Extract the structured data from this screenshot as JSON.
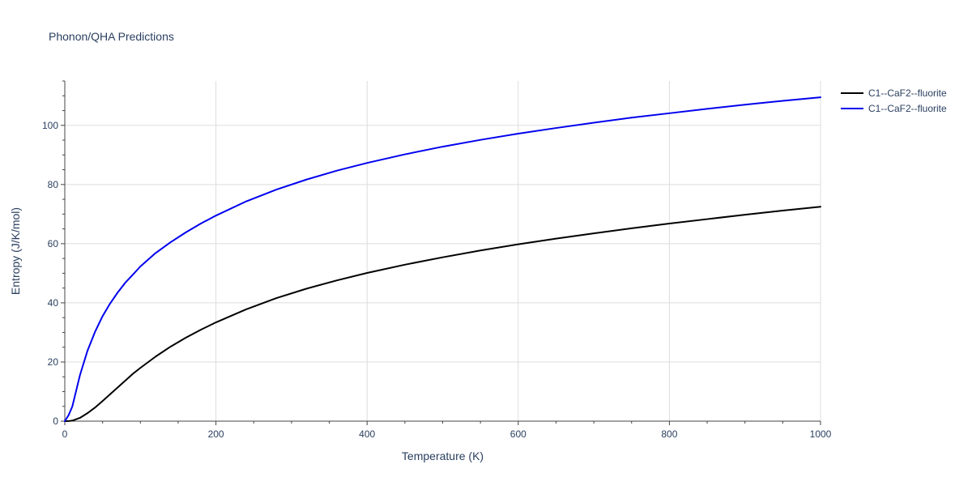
{
  "chart_data": {
    "type": "line",
    "title": "Phonon/QHA Predictions",
    "xlabel": "Temperature (K)",
    "ylabel": "Entropy (J/K/mol)",
    "xlim": [
      0,
      1000
    ],
    "ylim": [
      0,
      115
    ],
    "x_ticks": [
      0,
      200,
      400,
      600,
      800,
      1000
    ],
    "y_ticks": [
      0,
      20,
      40,
      60,
      80,
      100
    ],
    "x_tick_labels": [
      "0",
      "200",
      "400",
      "600",
      "800",
      "1000"
    ],
    "y_tick_labels": [
      "0",
      "20",
      "40",
      "60",
      "80",
      "100"
    ],
    "grid": true,
    "legend_position": "top-right outside",
    "series": [
      {
        "name": "C1--CaF2--fluorite",
        "color": "#000000",
        "x": [
          0,
          5,
          10,
          20,
          30,
          40,
          50,
          60,
          70,
          80,
          90,
          100,
          120,
          140,
          160,
          180,
          200,
          240,
          280,
          320,
          360,
          400,
          450,
          500,
          550,
          600,
          650,
          700,
          750,
          800,
          850,
          900,
          950,
          1000
        ],
        "y": [
          0,
          0.02,
          0.2,
          1.1,
          2.7,
          4.6,
          6.8,
          9.1,
          11.4,
          13.7,
          16.0,
          18.0,
          21.8,
          25.2,
          28.2,
          30.9,
          33.4,
          37.8,
          41.6,
          44.8,
          47.6,
          50.1,
          52.9,
          55.4,
          57.7,
          59.8,
          61.7,
          63.5,
          65.2,
          66.8,
          68.3,
          69.8,
          71.2,
          72.5
        ]
      },
      {
        "name": "C1--CaF2--fluorite",
        "color": "#0000ee",
        "x": [
          0,
          5,
          10,
          20,
          30,
          40,
          50,
          60,
          70,
          80,
          90,
          100,
          120,
          140,
          160,
          180,
          200,
          240,
          280,
          320,
          360,
          400,
          450,
          500,
          550,
          600,
          650,
          700,
          750,
          800,
          850,
          900,
          950,
          1000
        ],
        "y": [
          0,
          2,
          5,
          15.5,
          23.8,
          30.2,
          35.5,
          39.8,
          43.5,
          46.8,
          49.5,
          52.3,
          56.8,
          60.5,
          63.8,
          66.8,
          69.5,
          74.3,
          78.3,
          81.7,
          84.7,
          87.3,
          90.2,
          92.8,
          95.1,
          97.2,
          99.1,
          100.9,
          102.6,
          104.1,
          105.6,
          107.0,
          108.3,
          109.5
        ]
      }
    ]
  }
}
